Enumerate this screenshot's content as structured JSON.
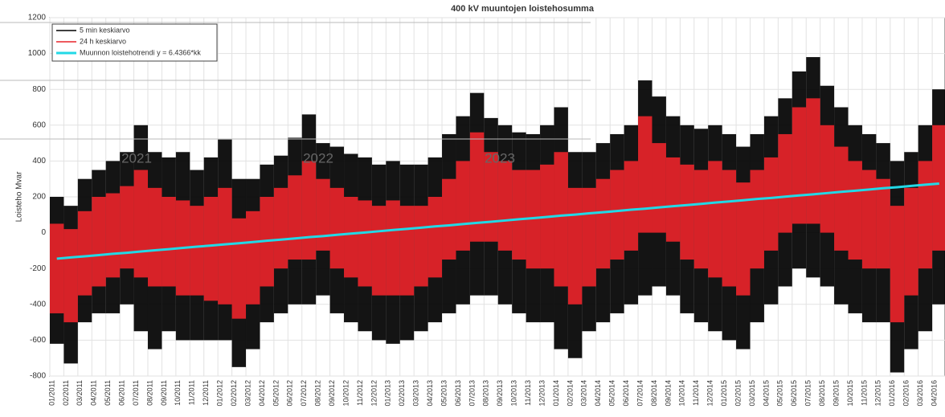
{
  "chart_data": {
    "type": "range",
    "title": "400 kV muuntojen loistehosumma",
    "y_label": "Loisteho Mvar",
    "annotations": [
      "2021",
      "2022",
      "2023"
    ],
    "categories": [
      "01/2011",
      "02/2011",
      "03/2011",
      "04/2011",
      "05/2011",
      "06/2011",
      "07/2011",
      "08/2011",
      "09/2011",
      "10/2011",
      "11/2011",
      "12/2011",
      "01/2012",
      "02/2012",
      "03/2012",
      "04/2012",
      "05/2012",
      "06/2012",
      "07/2012",
      "08/2012",
      "09/2012",
      "10/2012",
      "11/2012",
      "12/2012",
      "01/2013",
      "02/2013",
      "03/2013",
      "04/2013",
      "05/2013",
      "06/2013",
      "07/2013",
      "08/2013",
      "09/2013",
      "10/2013",
      "11/2013",
      "12/2013",
      "01/2014",
      "02/2014",
      "03/2014",
      "04/2014",
      "05/2014",
      "06/2014",
      "07/2014",
      "08/2014",
      "09/2014",
      "10/2014",
      "11/2014",
      "12/2014",
      "01/2015",
      "02/2015",
      "03/2015",
      "04/2015",
      "05/2015",
      "06/2015",
      "07/2015",
      "08/2015",
      "09/2015",
      "10/2015",
      "11/2015",
      "12/2015",
      "01/2016",
      "02/2016",
      "03/2016",
      "04/2016"
    ],
    "series": [
      {
        "name": "5 min keskiarvo",
        "color": "#000000",
        "kind": "range",
        "values": [
          [
            -620,
            200
          ],
          [
            -730,
            150
          ],
          [
            -500,
            300
          ],
          [
            -450,
            350
          ],
          [
            -450,
            400
          ],
          [
            -400,
            450
          ],
          [
            -550,
            600
          ],
          [
            -650,
            450
          ],
          [
            -550,
            420
          ],
          [
            -600,
            450
          ],
          [
            -600,
            350
          ],
          [
            -600,
            420
          ],
          [
            -600,
            520
          ],
          [
            -750,
            300
          ],
          [
            -650,
            300
          ],
          [
            -500,
            380
          ],
          [
            -450,
            430
          ],
          [
            -400,
            530
          ],
          [
            -400,
            660
          ],
          [
            -350,
            500
          ],
          [
            -450,
            480
          ],
          [
            -500,
            440
          ],
          [
            -550,
            420
          ],
          [
            -600,
            380
          ],
          [
            -620,
            400
          ],
          [
            -600,
            380
          ],
          [
            -550,
            380
          ],
          [
            -500,
            420
          ],
          [
            -450,
            550
          ],
          [
            -400,
            650
          ],
          [
            -350,
            780
          ],
          [
            -350,
            640
          ],
          [
            -400,
            600
          ],
          [
            -450,
            560
          ],
          [
            -500,
            550
          ],
          [
            -500,
            600
          ],
          [
            -650,
            700
          ],
          [
            -700,
            450
          ],
          [
            -550,
            450
          ],
          [
            -500,
            500
          ],
          [
            -450,
            550
          ],
          [
            -400,
            600
          ],
          [
            -350,
            850
          ],
          [
            -300,
            760
          ],
          [
            -350,
            650
          ],
          [
            -450,
            600
          ],
          [
            -500,
            580
          ],
          [
            -550,
            600
          ],
          [
            -600,
            550
          ],
          [
            -650,
            480
          ],
          [
            -500,
            550
          ],
          [
            -400,
            650
          ],
          [
            -300,
            750
          ],
          [
            -200,
            900
          ],
          [
            -250,
            980
          ],
          [
            -300,
            820
          ],
          [
            -400,
            700
          ],
          [
            -450,
            600
          ],
          [
            -500,
            550
          ],
          [
            -500,
            500
          ],
          [
            -780,
            400
          ],
          [
            -650,
            450
          ],
          [
            -550,
            600
          ],
          [
            -400,
            800
          ]
        ]
      },
      {
        "name": "24 h keskiarvo",
        "color": "#e8242a",
        "kind": "range",
        "values": [
          [
            -450,
            50
          ],
          [
            -500,
            20
          ],
          [
            -350,
            120
          ],
          [
            -300,
            200
          ],
          [
            -250,
            220
          ],
          [
            -200,
            260
          ],
          [
            -250,
            350
          ],
          [
            -300,
            250
          ],
          [
            -300,
            200
          ],
          [
            -350,
            180
          ],
          [
            -350,
            150
          ],
          [
            -380,
            200
          ],
          [
            -400,
            250
          ],
          [
            -480,
            80
          ],
          [
            -400,
            120
          ],
          [
            -300,
            200
          ],
          [
            -200,
            250
          ],
          [
            -150,
            320
          ],
          [
            -150,
            400
          ],
          [
            -100,
            300
          ],
          [
            -200,
            250
          ],
          [
            -250,
            200
          ],
          [
            -300,
            180
          ],
          [
            -350,
            150
          ],
          [
            -350,
            180
          ],
          [
            -350,
            150
          ],
          [
            -300,
            150
          ],
          [
            -250,
            200
          ],
          [
            -150,
            300
          ],
          [
            -100,
            400
          ],
          [
            -50,
            560
          ],
          [
            -50,
            450
          ],
          [
            -100,
            400
          ],
          [
            -150,
            350
          ],
          [
            -200,
            350
          ],
          [
            -200,
            380
          ],
          [
            -300,
            450
          ],
          [
            -400,
            250
          ],
          [
            -300,
            250
          ],
          [
            -200,
            300
          ],
          [
            -150,
            350
          ],
          [
            -100,
            400
          ],
          [
            0,
            650
          ],
          [
            0,
            500
          ],
          [
            -50,
            420
          ],
          [
            -150,
            380
          ],
          [
            -200,
            350
          ],
          [
            -250,
            400
          ],
          [
            -300,
            350
          ],
          [
            -350,
            280
          ],
          [
            -200,
            350
          ],
          [
            -100,
            420
          ],
          [
            0,
            550
          ],
          [
            50,
            700
          ],
          [
            50,
            750
          ],
          [
            0,
            600
          ],
          [
            -100,
            480
          ],
          [
            -150,
            400
          ],
          [
            -200,
            350
          ],
          [
            -200,
            300
          ],
          [
            -500,
            150
          ],
          [
            -350,
            250
          ],
          [
            -200,
            400
          ],
          [
            -100,
            600
          ]
        ]
      },
      {
        "name": "Muunnon loistehotrendi y = 6.4366*kk",
        "color": "#22d8e6",
        "kind": "line",
        "values": [
          -145,
          -138,
          -132,
          -125,
          -118,
          -112,
          -105,
          -98,
          -92,
          -85,
          -78,
          -72,
          -65,
          -59,
          -52,
          -45,
          -39,
          -32,
          -25,
          -19,
          -12,
          -5,
          1,
          8,
          15,
          21,
          28,
          35,
          41,
          48,
          55,
          61,
          68,
          75,
          81,
          88,
          95,
          101,
          108,
          114,
          121,
          128,
          134,
          141,
          148,
          154,
          161,
          168,
          174,
          181,
          188,
          194,
          201,
          208,
          214,
          221,
          228,
          234,
          241,
          248,
          254,
          261,
          268,
          274
        ]
      }
    ],
    "ylim": [
      -800,
      1200
    ],
    "yticks": [
      -800,
      -600,
      -400,
      -200,
      0,
      200,
      400,
      600,
      800,
      1000,
      1200
    ],
    "grid": true,
    "legend": "upper left"
  }
}
